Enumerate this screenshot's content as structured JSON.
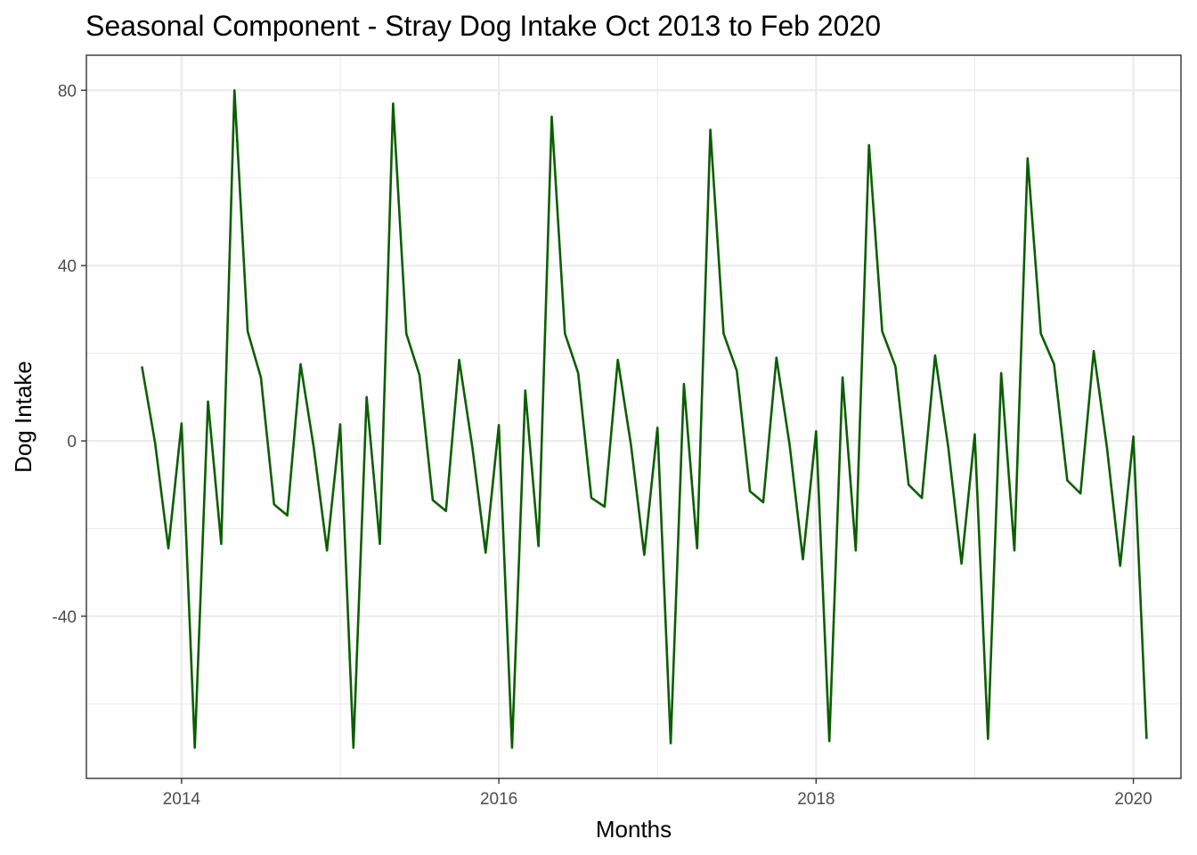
{
  "chart_data": {
    "type": "line",
    "title": "Seasonal Component - Stray Dog Intake Oct 2013 to Feb 2020",
    "xlabel": "Months",
    "ylabel": "Dog Intake",
    "x_start": "2013-10",
    "x_ticks": [
      {
        "value": 2014,
        "label": "2014"
      },
      {
        "value": 2016,
        "label": "2016"
      },
      {
        "value": 2018,
        "label": "2018"
      },
      {
        "value": 2020,
        "label": "2020"
      }
    ],
    "y_ticks": [
      {
        "value": -40,
        "label": "-40"
      },
      {
        "value": 0,
        "label": "0"
      },
      {
        "value": 40,
        "label": "40"
      },
      {
        "value": 80,
        "label": "80"
      }
    ],
    "xlim": [
      2013.4,
      2020.3
    ],
    "ylim": [
      -77,
      88
    ],
    "grid": true,
    "line_color": "#0b5e00",
    "series": [
      {
        "values": [
          17.0,
          -0.5,
          -24.5,
          4.0,
          -70.0,
          9.0,
          -23.5,
          80.0,
          25.0,
          14.5,
          -14.5,
          -17.0,
          17.5,
          -1.5,
          -25.0,
          3.8,
          -70.0,
          10.0,
          -23.5,
          77.0,
          24.5,
          15.0,
          -13.5,
          -16.0,
          18.5,
          -1.5,
          -25.5,
          3.6,
          -70.0,
          11.5,
          -24.0,
          74.0,
          24.5,
          15.5,
          -13.0,
          -15.0,
          18.5,
          -1.0,
          -26.0,
          3.0,
          -69.0,
          13.0,
          -24.5,
          71.0,
          24.5,
          16.0,
          -11.5,
          -14.0,
          19.0,
          -1.0,
          -27.0,
          2.2,
          -68.5,
          14.5,
          -25.0,
          67.5,
          25.0,
          17.0,
          -10.0,
          -13.0,
          19.5,
          -1.5,
          -28.0,
          1.5,
          -68.0,
          15.5,
          -25.0,
          64.5,
          24.5,
          17.5,
          -9.0,
          -12.0,
          20.5,
          -1.5,
          -28.5,
          1.0,
          -68.0
        ]
      }
    ]
  }
}
